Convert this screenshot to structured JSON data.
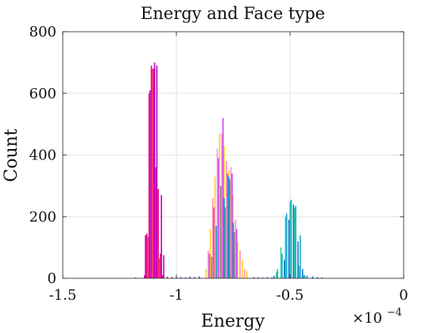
{
  "chart_data": {
    "type": "histogram",
    "title": "Energy and Face type",
    "xlabel": "Energy",
    "ylabel": "Count",
    "x_multiplier_label": "×10",
    "x_multiplier_exponent": "−4",
    "xlim": [
      -1.5,
      0
    ],
    "ylim": [
      0,
      800
    ],
    "x_ticks": [
      -1.5,
      -1.0,
      -0.5,
      0
    ],
    "x_tick_labels": [
      "-1.5",
      "-1",
      "-0.5",
      "0"
    ],
    "y_ticks": [
      0,
      200,
      400,
      600,
      800
    ],
    "y_tick_labels": [
      "0",
      "200",
      "400",
      "600",
      "800"
    ],
    "grid": true,
    "units_note": "x values in units of 1e-4",
    "series": [
      {
        "color": "#e6007e",
        "x": [
          -1.14,
          -1.13,
          -1.12,
          -1.11,
          -1.1,
          -1.09,
          -1.08,
          -1.07,
          -1.06
        ],
        "values": [
          10,
          145,
          600,
          690,
          680,
          360,
          290,
          80,
          10
        ]
      },
      {
        "color": "#c000c0",
        "x": [
          -1.136,
          -1.116,
          -1.096,
          -1.086,
          -1.066,
          -1.056
        ],
        "values": [
          140,
          610,
          700,
          690,
          270,
          75
        ]
      },
      {
        "color": "#ff3070",
        "x": [
          -1.126,
          -1.106,
          -1.076
        ],
        "values": [
          135,
          680,
          65
        ]
      },
      {
        "color": "#ffd21f",
        "x": [
          -0.87,
          -0.85,
          -0.83,
          -0.81,
          -0.79,
          -0.77,
          -0.75,
          -0.73,
          -0.71,
          -0.69
        ],
        "values": [
          30,
          160,
          330,
          470,
          430,
          350,
          270,
          120,
          60,
          25
        ]
      },
      {
        "color": "#ff8ec6",
        "x": [
          -0.86,
          -0.84,
          -0.82,
          -0.8,
          -0.78,
          -0.76,
          -0.74,
          -0.72,
          -0.7
        ],
        "values": [
          90,
          260,
          420,
          470,
          380,
          360,
          190,
          90,
          30
        ]
      },
      {
        "color": "#cc44ff",
        "x": [
          -0.855,
          -0.835,
          -0.815,
          -0.795,
          -0.775,
          -0.755,
          -0.735
        ],
        "values": [
          80,
          230,
          390,
          520,
          340,
          340,
          160
        ]
      },
      {
        "color": "#888888",
        "x": [
          -0.845,
          -0.805,
          -0.785,
          -0.765,
          -0.745
        ],
        "values": [
          70,
          300,
          230,
          320,
          150
        ]
      },
      {
        "color": "#00a0b4",
        "x": [
          -0.825,
          -0.79,
          -0.77,
          -0.75
        ],
        "values": [
          170,
          260,
          330,
          180
        ]
      },
      {
        "color": "#2ed5a0",
        "x": [
          -0.56,
          -0.54,
          -0.52,
          -0.5,
          -0.48,
          -0.46,
          -0.44
        ],
        "values": [
          20,
          100,
          200,
          250,
          230,
          40,
          10
        ]
      },
      {
        "color": "#1ca8d8",
        "x": [
          -0.555,
          -0.535,
          -0.515,
          -0.495,
          -0.475,
          -0.455,
          -0.435
        ],
        "values": [
          30,
          80,
          210,
          255,
          235,
          140,
          10
        ]
      },
      {
        "color": "#0a78c8",
        "x": [
          -0.57,
          -0.525,
          -0.505,
          -0.485,
          -0.465,
          -0.445,
          -0.425,
          -0.4,
          -0.38,
          -0.36
        ],
        "values": [
          8,
          60,
          190,
          240,
          120,
          30,
          8,
          6,
          4,
          3
        ]
      },
      {
        "color": "#7d2ee0",
        "x": [
          -1.18,
          -1.04,
          -1.02,
          -1.0,
          -0.98,
          -0.96,
          -0.94,
          -0.92,
          -0.9,
          -0.66,
          -0.64,
          -0.62,
          -0.6,
          -0.58
        ],
        "values": [
          3,
          5,
          4,
          3,
          4,
          3,
          5,
          4,
          6,
          4,
          3,
          3,
          4,
          3
        ]
      }
    ]
  }
}
